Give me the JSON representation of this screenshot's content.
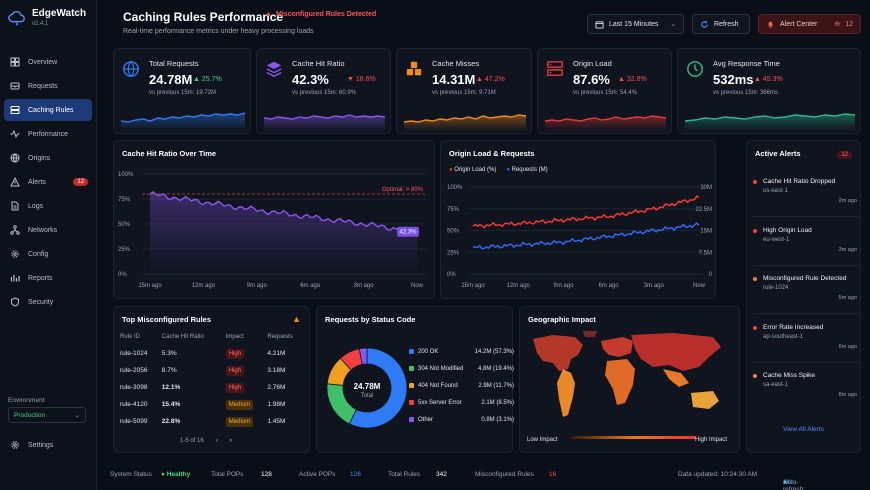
{
  "app": {
    "name": "EdgeWatch",
    "version": "v2.4.1"
  },
  "sidebar": {
    "items": [
      {
        "label": "Overview",
        "icon": "grid-icon"
      },
      {
        "label": "Requests",
        "icon": "inbox-icon"
      },
      {
        "label": "Caching Rules",
        "icon": "server-icon",
        "active": true
      },
      {
        "label": "Performance",
        "icon": "pulse-icon"
      },
      {
        "label": "Origins",
        "icon": "globe-icon"
      },
      {
        "label": "Alerts",
        "icon": "warning-icon",
        "badge": "12"
      },
      {
        "label": "Logs",
        "icon": "document-icon"
      },
      {
        "label": "Networks",
        "icon": "network-icon"
      },
      {
        "label": "Config",
        "icon": "gear-icon"
      },
      {
        "label": "Reports",
        "icon": "chart-icon"
      },
      {
        "label": "Security",
        "icon": "shield-icon"
      }
    ],
    "environment_label": "Environment",
    "environment_value": "Production",
    "settings_label": "Settings"
  },
  "header": {
    "title": "Caching Rules Performance",
    "warning": "Misconfigured Rules Detected",
    "subtitle": "Real-time performance metrics under heavy processing loads",
    "time_range": "Last 15 Minutes",
    "refresh": "Refresh",
    "alert_center": "Alert Center",
    "alert_count": "12"
  },
  "kpis": [
    {
      "label": "Total Requests",
      "value": "24.78M",
      "change": "25.7%",
      "dir": "up",
      "prev": "vs previous 15m: 19.72M",
      "color": "#2f7bf5"
    },
    {
      "label": "Cache Hit Ratio",
      "value": "42.3%",
      "change": "18.6%",
      "dir": "down",
      "prev": "vs previous 15m: 60.9%",
      "color": "#8a56f0"
    },
    {
      "label": "Cache Misses",
      "value": "14.31M",
      "change": "47.2%",
      "dir": "up-bad",
      "prev": "vs previous 15m: 9.71M",
      "color": "#f08a1c"
    },
    {
      "label": "Origin Load",
      "value": "87.6%",
      "change": "32.8%",
      "dir": "up-bad",
      "prev": "vs previous 15m: 54.4%",
      "color": "#e83a3a"
    },
    {
      "label": "Avg Response Time",
      "value": "532ms",
      "change": "45.3%",
      "dir": "up-bad",
      "prev": "vs previous 15m: 366ms",
      "color": "#2fb890"
    }
  ],
  "hit_ratio_chart": {
    "title": "Cache Hit Ratio Over Time",
    "optimal_label": "Optimal: > 80%",
    "end_label": "42.3%"
  },
  "origin_chart": {
    "title": "Origin Load & Requests",
    "legend_load": "Origin Load (%)",
    "legend_req": "Requests (M)"
  },
  "chart_data": [
    {
      "type": "line",
      "title": "Cache Hit Ratio Over Time",
      "x": [
        "15m ago",
        "12m ago",
        "9m ago",
        "6m ago",
        "3m ago",
        "Now"
      ],
      "series": [
        {
          "values": [
            80,
            72,
            64,
            57,
            50,
            42.3
          ]
        }
      ],
      "yticks": [
        "100%",
        "75%",
        "50%",
        "25%",
        "0%"
      ],
      "ylim": [
        0,
        100
      ],
      "threshold": 80,
      "color": "#8a56f0"
    },
    {
      "type": "line",
      "title": "Origin Load & Requests",
      "x": [
        "15m ago",
        "12m ago",
        "9m ago",
        "6m ago",
        "3m ago",
        "Now"
      ],
      "series": [
        {
          "name": "Origin Load (%)",
          "values": [
            55,
            58,
            62,
            66,
            75,
            87.6
          ],
          "color": "#ff3b30"
        },
        {
          "name": "Requests (M)",
          "values": [
            9,
            10,
            11,
            13,
            15,
            17
          ],
          "color": "#2f6fff"
        }
      ],
      "yticks_left": [
        "100%",
        "75%",
        "50%",
        "25%",
        "0%"
      ],
      "yticks_right": [
        "30M",
        "22.5M",
        "15M",
        "7.5M",
        "0"
      ],
      "ylim_left": [
        0,
        100
      ],
      "ylim_right": [
        0,
        30
      ]
    },
    {
      "type": "pie",
      "title": "Requests by Status Code",
      "center_value": "24.78M",
      "center_label": "Total",
      "categories": [
        "200 OK",
        "304 Not Modified",
        "404 Not Found",
        "5xx Server Error",
        "Other"
      ],
      "values": [
        57.3,
        19.4,
        11.7,
        8.5,
        3.1
      ],
      "labels": [
        "14.2M (57.3%)",
        "4.8M (19.4%)",
        "2.9M (11.7%)",
        "2.1M (8.5%)",
        "0.8M (3.1%)"
      ],
      "colors": [
        "#2f7bf5",
        "#3fbf6a",
        "#f0a020",
        "#f04040",
        "#8a56f0"
      ]
    }
  ],
  "rules_table": {
    "title": "Top Misconfigured Rules",
    "headers": [
      "Rule ID",
      "Cache Hit Ratio",
      "Impact",
      "Requests"
    ],
    "rows": [
      [
        "rule-1024",
        "5.3%",
        "High",
        "4.21M"
      ],
      [
        "rule-2056",
        "8.7%",
        "High",
        "3.18M"
      ],
      [
        "rule-3098",
        "12.1%",
        "High",
        "2.76M"
      ],
      [
        "rule-4120",
        "15.4%",
        "Medium",
        "1.98M"
      ],
      [
        "rule-5099",
        "22.8%",
        "Medium",
        "1.45M"
      ]
    ],
    "pagination": "1-5 of 16"
  },
  "status_chart": {
    "title": "Requests by Status Code"
  },
  "geo": {
    "title": "Geographic Impact",
    "low": "Low Impact",
    "high": "High Impact"
  },
  "alerts": {
    "title": "Active Alerts",
    "count": "12",
    "view_all": "View All Alerts",
    "items": [
      {
        "title": "Cache Hit Ratio Dropped",
        "source": "us-east-1",
        "time": "2m ago",
        "color": "#f04040"
      },
      {
        "title": "High Origin Load",
        "source": "eu-west-1",
        "time": "3m ago",
        "color": "#f04040"
      },
      {
        "title": "Misconfigured Rule Detected",
        "source": "rule-1024",
        "time": "5m ago",
        "color": "#f08a1c"
      },
      {
        "title": "Error Rate Increased",
        "source": "ap-southeast-1",
        "time": "6m ago",
        "color": "#f04040"
      },
      {
        "title": "Cache Miss Spike",
        "source": "sa-east-1",
        "time": "8m ago",
        "color": "#f08a1c"
      }
    ]
  },
  "statusbar": {
    "system_label": "System Status",
    "system_value": "Healthy",
    "pops_label": "Total POPs",
    "pops_value": "128",
    "active_label": "Active POPs",
    "active_value": "126",
    "rules_label": "Total Rules",
    "rules_value": "342",
    "mis_label": "Misconfigured Rules",
    "mis_value": "16",
    "updated": "Data updated: 10:24:30 AM",
    "auto_label": "Auto-refresh:",
    "auto_value": "ON"
  }
}
